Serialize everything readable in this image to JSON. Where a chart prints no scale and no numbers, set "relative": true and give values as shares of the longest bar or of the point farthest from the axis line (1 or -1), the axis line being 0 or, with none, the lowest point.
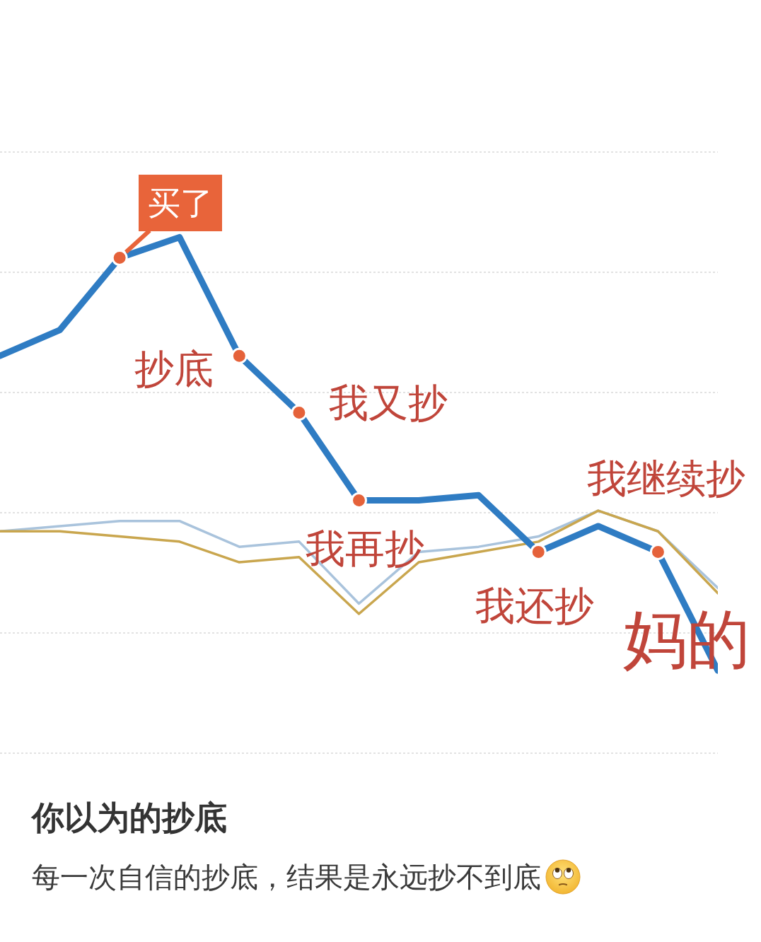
{
  "chart_data": {
    "type": "line",
    "title": "你以为的抄底",
    "subtitle": "每一次自信的抄底，结果是永远抄不到底",
    "categories": [
      null,
      null,
      null,
      null,
      null,
      null,
      null,
      null,
      null,
      null,
      null,
      null,
      null
    ],
    "relative": true,
    "grid": "y",
    "line_style": "solid",
    "series": [
      {
        "color": "#2f7cc3",
        "values": [
          0.77,
          0.82,
          0.96,
          1,
          0.77,
          0.66,
          0.49,
          0.49,
          0.5,
          0.39,
          0.44,
          0.39,
          0.16
        ]
      },
      {
        "color": "#a9c3dc",
        "values": [
          0.43,
          0.44,
          0.45,
          0.45,
          0.4,
          0.41,
          0.29,
          0.39,
          0.4,
          0.42,
          0.47,
          0.43,
          0.32
        ]
      },
      {
        "color": "#c9a64e",
        "values": [
          0.43,
          0.43,
          0.42,
          0.41,
          0.37,
          0.38,
          0.27,
          0.37,
          0.39,
          0.41,
          0.47,
          0.43,
          0.31
        ]
      }
    ],
    "annotations": [
      "买了",
      "抄底",
      "我又抄",
      "我再抄",
      "我还抄",
      "我继续抄",
      "妈的"
    ]
  }
}
